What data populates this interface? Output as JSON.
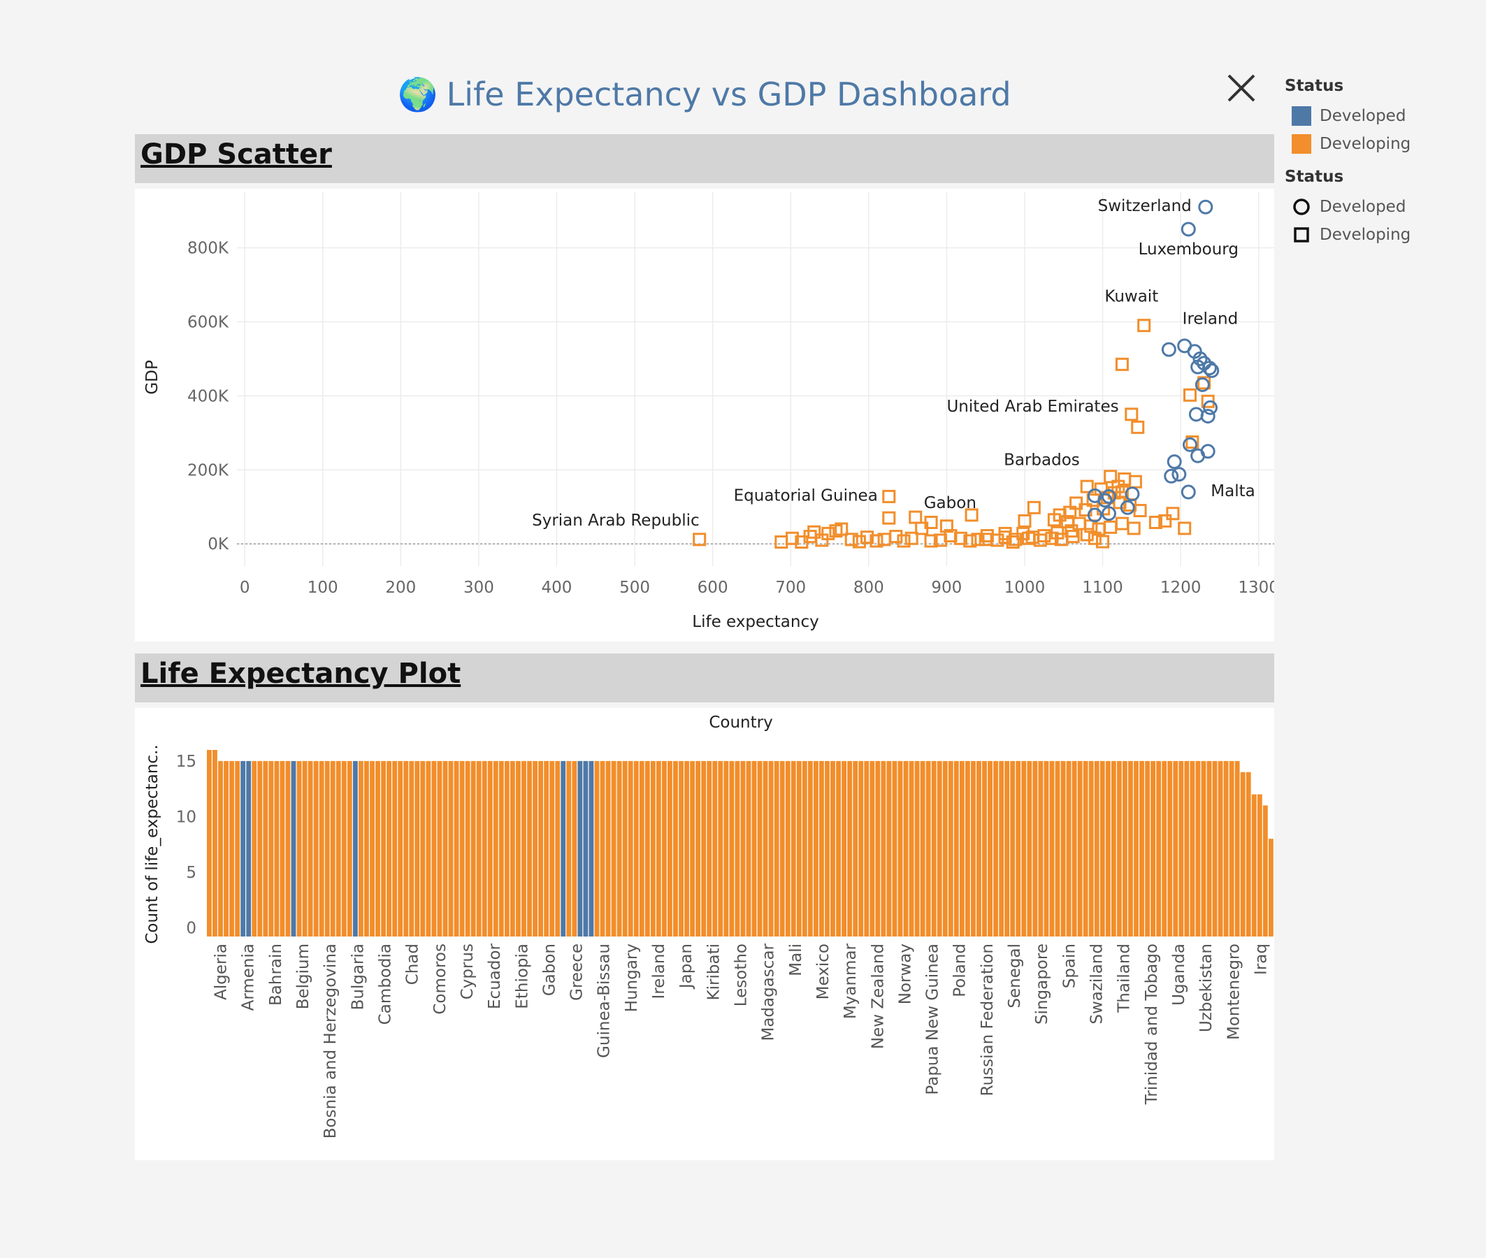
{
  "dashboard": {
    "title": "Life Expectancy vs GDP Dashboard",
    "globe_icon": "🌍"
  },
  "panels": {
    "scatter_title": "GDP Scatter",
    "bar_title": "Life Expectancy Plot"
  },
  "legend": {
    "color_title": "Status",
    "color_items": [
      {
        "label": "Developed",
        "color": "#4e79a7"
      },
      {
        "label": "Developing",
        "color": "#f28e2b"
      }
    ],
    "shape_title": "Status",
    "shape_items": [
      {
        "label": "Developed",
        "shape": "circle"
      },
      {
        "label": "Developing",
        "shape": "square"
      }
    ]
  },
  "colors": {
    "developed": "#4e79a7",
    "developing": "#f28e2b"
  },
  "chart_data": [
    {
      "type": "scatter",
      "title": "GDP Scatter",
      "xlabel": "Life expectancy",
      "ylabel": "GDP",
      "xlim": [
        -10,
        1320
      ],
      "ylim": [
        -60000,
        950000
      ],
      "xticks": [
        0,
        100,
        200,
        300,
        400,
        500,
        600,
        700,
        800,
        900,
        1000,
        1100,
        1200,
        1300
      ],
      "yticks": [
        0,
        200000,
        400000,
        600000,
        800000
      ],
      "ytick_labels": [
        "0K",
        "200K",
        "400K",
        "600K",
        "800K"
      ],
      "grid": true,
      "labels": [
        {
          "text": "Switzerland",
          "x": 1232,
          "y": 910000
        },
        {
          "text": "Luxembourg",
          "x": 1210,
          "y": 850000
        },
        {
          "text": "Ireland",
          "x": 1153,
          "y": 590000
        },
        {
          "text": "Kuwait",
          "x": 1137,
          "y": 485000
        },
        {
          "text": "United Arab Emirates",
          "x": 1135,
          "y": 350000
        },
        {
          "text": "Barbados",
          "x": 1128,
          "y": 175000
        },
        {
          "text": "Malta",
          "x": 1210,
          "y": 140000
        },
        {
          "text": "Equatorial Guinea",
          "x": 826,
          "y": 128000
        },
        {
          "text": "Gabon",
          "x": 860,
          "y": 70000
        },
        {
          "text": "Syrian Arab Republic",
          "x": 583,
          "y": 12000
        }
      ],
      "series": [
        {
          "name": "Developed",
          "points": [
            [
              1232,
              910000
            ],
            [
              1210,
              850000
            ],
            [
              1185,
              525000
            ],
            [
              1205,
              535000
            ],
            [
              1218,
              520000
            ],
            [
              1225,
              500000
            ],
            [
              1222,
              478000
            ],
            [
              1230,
              488000
            ],
            [
              1237,
              475000
            ],
            [
              1240,
              468000
            ],
            [
              1228,
              430000
            ],
            [
              1238,
              368000
            ],
            [
              1235,
              345000
            ],
            [
              1220,
              350000
            ],
            [
              1212,
              268000
            ],
            [
              1235,
              250000
            ],
            [
              1222,
              238000
            ],
            [
              1192,
              222000
            ],
            [
              1198,
              188000
            ],
            [
              1188,
              183000
            ],
            [
              1210,
              140000
            ],
            [
              1138,
              135000
            ],
            [
              1108,
              128000
            ],
            [
              1090,
              130000
            ],
            [
              1103,
              118000
            ],
            [
              1132,
              98000
            ],
            [
              1108,
              82000
            ],
            [
              1090,
              78000
            ]
          ]
        },
        {
          "name": "Developing",
          "points": [
            [
              1153,
              590000
            ],
            [
              1125,
              485000
            ],
            [
              1137,
              350000
            ],
            [
              1145,
              315000
            ],
            [
              1212,
              402000
            ],
            [
              1230,
              435000
            ],
            [
              1235,
              385000
            ],
            [
              1215,
              275000
            ],
            [
              1128,
              175000
            ],
            [
              1142,
              168000
            ],
            [
              1110,
              182000
            ],
            [
              1120,
              155000
            ],
            [
              1125,
              140000
            ],
            [
              1098,
              148000
            ],
            [
              1080,
              155000
            ],
            [
              1115,
              138000
            ],
            [
              1106,
              125000
            ],
            [
              1088,
              118000
            ],
            [
              1066,
              110000
            ],
            [
              1122,
              112000
            ],
            [
              1135,
              105000
            ],
            [
              1148,
              90000
            ],
            [
              1101,
              95000
            ],
            [
              1078,
              92000
            ],
            [
              1058,
              85000
            ],
            [
              1045,
              78000
            ],
            [
              1038,
              65000
            ],
            [
              1055,
              60000
            ],
            [
              1012,
              98000
            ],
            [
              1000,
              62000
            ],
            [
              1070,
              55000
            ],
            [
              1085,
              48000
            ],
            [
              1110,
              45000
            ],
            [
              1125,
              55000
            ],
            [
              1140,
              42000
            ],
            [
              1180,
              62000
            ],
            [
              1190,
              82000
            ],
            [
              1205,
              42000
            ],
            [
              1168,
              58000
            ],
            [
              1095,
              40000
            ],
            [
              1060,
              35000
            ],
            [
              1042,
              30000
            ],
            [
              1025,
              22000
            ],
            [
              1010,
              18000
            ],
            [
              998,
              28000
            ],
            [
              988,
              12000
            ],
            [
              975,
              28000
            ],
            [
              965,
              10000
            ],
            [
              952,
              22000
            ],
            [
              940,
              12000
            ],
            [
              930,
              8000
            ],
            [
              918,
              15000
            ],
            [
              905,
              22000
            ],
            [
              892,
              10000
            ],
            [
              880,
              8000
            ],
            [
              868,
              42000
            ],
            [
              855,
              15000
            ],
            [
              845,
              8000
            ],
            [
              835,
              20000
            ],
            [
              826,
              128000
            ],
            [
              820,
              12000
            ],
            [
              810,
              8000
            ],
            [
              798,
              18000
            ],
            [
              788,
              6000
            ],
            [
              778,
              12000
            ],
            [
              765,
              40000
            ],
            [
              758,
              35000
            ],
            [
              748,
              28000
            ],
            [
              740,
              10000
            ],
            [
              730,
              32000
            ],
            [
              725,
              20000
            ],
            [
              714,
              5000
            ],
            [
              702,
              15000
            ],
            [
              688,
              5000
            ],
            [
              583,
              12000
            ],
            [
              826,
              70000
            ],
            [
              860,
              72000
            ],
            [
              880,
              58000
            ],
            [
              932,
              78000
            ],
            [
              950,
              12000
            ],
            [
              900,
              48000
            ],
            [
              1090,
              15000
            ],
            [
              1100,
              6000
            ],
            [
              1080,
              25000
            ],
            [
              1062,
              20000
            ],
            [
              1047,
              12000
            ],
            [
              1035,
              15000
            ],
            [
              1020,
              10000
            ],
            [
              1005,
              15000
            ],
            [
              985,
              5000
            ],
            [
              975,
              18000
            ]
          ]
        }
      ]
    },
    {
      "type": "bar",
      "title": "Life Expectancy Plot",
      "xlabel": "Country",
      "ylabel": "Count of life_expectanc..",
      "ylim": [
        -0.8,
        16
      ],
      "yticks": [
        0,
        5,
        10,
        15
      ],
      "grid": false,
      "visible_tick_labels": [
        "Algeria",
        "Armenia",
        "Bahrain",
        "Belgium",
        "Bosnia and Herzegovina",
        "Bulgaria",
        "Cambodia",
        "Chad",
        "Comoros",
        "Cyprus",
        "Ecuador",
        "Ethiopia",
        "Gabon",
        "Greece",
        "Guinea-Bissau",
        "Hungary",
        "Ireland",
        "Japan",
        "Kiribati",
        "Lesotho",
        "Madagascar",
        "Mali",
        "Mexico",
        "Myanmar",
        "New Zealand",
        "Norway",
        "Papua New Guinea",
        "Poland",
        "Russian Federation",
        "Senegal",
        "Singapore",
        "Spain",
        "Swaziland",
        "Thailand",
        "Trinidad and Tobago",
        "Uganda",
        "Uzbekistan",
        "Montenegro",
        "Iraq"
      ],
      "bar_count": 193,
      "values_note_pattern": "most countries have count 15",
      "values": [
        16,
        16,
        15,
        15,
        15,
        15,
        15,
        15,
        15,
        15,
        15,
        15,
        15,
        15,
        15,
        15,
        15,
        15,
        15,
        15,
        15,
        15,
        15,
        15,
        15,
        15,
        15,
        15,
        15,
        15,
        15,
        15,
        15,
        15,
        15,
        15,
        15,
        15,
        15,
        15,
        15,
        15,
        15,
        15,
        15,
        15,
        15,
        15,
        15,
        15,
        15,
        15,
        15,
        15,
        15,
        15,
        15,
        15,
        15,
        15,
        15,
        15,
        15,
        15,
        15,
        15,
        15,
        15,
        15,
        15,
        15,
        15,
        15,
        15,
        15,
        15,
        15,
        15,
        15,
        15,
        15,
        15,
        15,
        15,
        15,
        15,
        15,
        15,
        15,
        15,
        15,
        15,
        15,
        15,
        15,
        15,
        15,
        15,
        15,
        15,
        15,
        15,
        15,
        15,
        15,
        15,
        15,
        15,
        15,
        15,
        15,
        15,
        15,
        15,
        15,
        15,
        15,
        15,
        15,
        15,
        15,
        15,
        15,
        15,
        15,
        15,
        15,
        15,
        15,
        15,
        15,
        15,
        15,
        15,
        15,
        15,
        15,
        15,
        15,
        15,
        15,
        15,
        15,
        15,
        15,
        15,
        15,
        15,
        15,
        15,
        15,
        15,
        15,
        15,
        15,
        15,
        15,
        15,
        15,
        15,
        15,
        15,
        15,
        15,
        15,
        15,
        15,
        15,
        15,
        15,
        15,
        15,
        15,
        15,
        15,
        15,
        15,
        15,
        15,
        15,
        15,
        15,
        15,
        15,
        14,
        14,
        12,
        12,
        11,
        8
      ],
      "status": [
        "g",
        "g",
        "g",
        "g",
        "g",
        "g",
        "d",
        "d",
        "g",
        "g",
        "g",
        "g",
        "g",
        "g",
        "g",
        "d",
        "g",
        "g",
        "g",
        "g",
        "g",
        "g",
        "g",
        "g",
        "g",
        "g",
        "d",
        "g",
        "g",
        "g",
        "g",
        "g",
        "g",
        "g",
        "g",
        "g",
        "g",
        "g",
        "g",
        "g",
        "g",
        "g",
        "g",
        "g",
        "g",
        "g",
        "g",
        "g",
        "g",
        "g",
        "g",
        "g",
        "g",
        "g",
        "g",
        "g",
        "g",
        "g",
        "g",
        "g",
        "g",
        "g",
        "g",
        "d",
        "g",
        "g",
        "d",
        "d",
        "d",
        "g",
        "g",
        "g",
        "g",
        "g",
        "g",
        "g",
        "g",
        "g",
        "g",
        "g",
        "g",
        "g",
        "g",
        "g",
        "g",
        "g",
        "g",
        "g",
        "g",
        "g",
        "g",
        "g",
        "g",
        "g",
        "g",
        "g",
        "g",
        "g",
        "g",
        "g",
        "g",
        "g",
        "g",
        "g",
        "g",
        "g",
        "g",
        "g",
        "g",
        "g",
        "g",
        "g",
        "g",
        "g",
        "g",
        "g",
        "g",
        "g",
        "g",
        "g",
        "g",
        "g",
        "g",
        "g",
        "g",
        "g",
        "g",
        "g",
        "g",
        "g",
        "g",
        "g",
        "g",
        "g",
        "g",
        "g",
        "g",
        "g",
        "g",
        "g",
        "g",
        "g",
        "g",
        "g",
        "g",
        "g",
        "g",
        "g",
        "g",
        "g",
        "g",
        "g",
        "g",
        "g",
        "g",
        "g",
        "g",
        "g",
        "g",
        "g",
        "g",
        "g",
        "g",
        "g",
        "g",
        "g",
        "g",
        "g",
        "g",
        "g",
        "g",
        "g",
        "g",
        "g",
        "g",
        "g",
        "g",
        "g",
        "g",
        "g",
        "g",
        "g",
        "g",
        "g",
        "g",
        "g",
        "g",
        "g",
        "g",
        "g",
        "g",
        "g",
        "g"
      ]
    }
  ]
}
